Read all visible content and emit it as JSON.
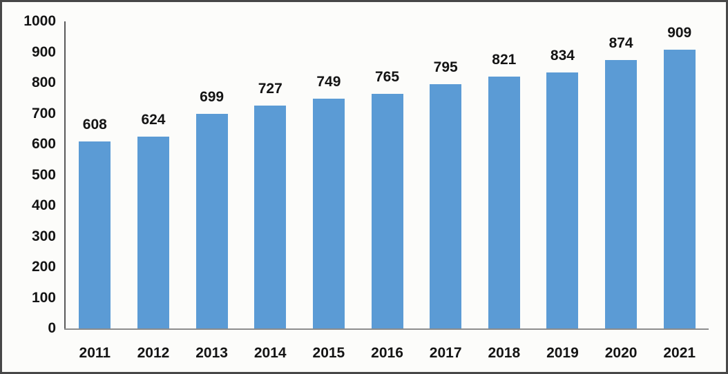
{
  "chart_data": {
    "type": "bar",
    "title": "",
    "xlabel": "",
    "ylabel": "",
    "categories": [
      "2011",
      "2012",
      "2013",
      "2014",
      "2015",
      "2016",
      "2017",
      "2018",
      "2019",
      "2020",
      "2021"
    ],
    "values": [
      608,
      624,
      699,
      727,
      749,
      765,
      795,
      821,
      834,
      874,
      909
    ],
    "data_labels_shown": true,
    "ylim": [
      0,
      1000
    ],
    "yticks": [
      0,
      100,
      200,
      300,
      400,
      500,
      600,
      700,
      800,
      900,
      1000
    ],
    "grid": false,
    "legend": false,
    "bar_color": "#5B9BD5"
  },
  "colors": {
    "bar": "#5B9BD5",
    "background": "#fcfcfa",
    "frame_border": "#474747",
    "y_axis_line": "#595959",
    "x_axis_line": "#8c8c8c",
    "text": "#141414"
  }
}
